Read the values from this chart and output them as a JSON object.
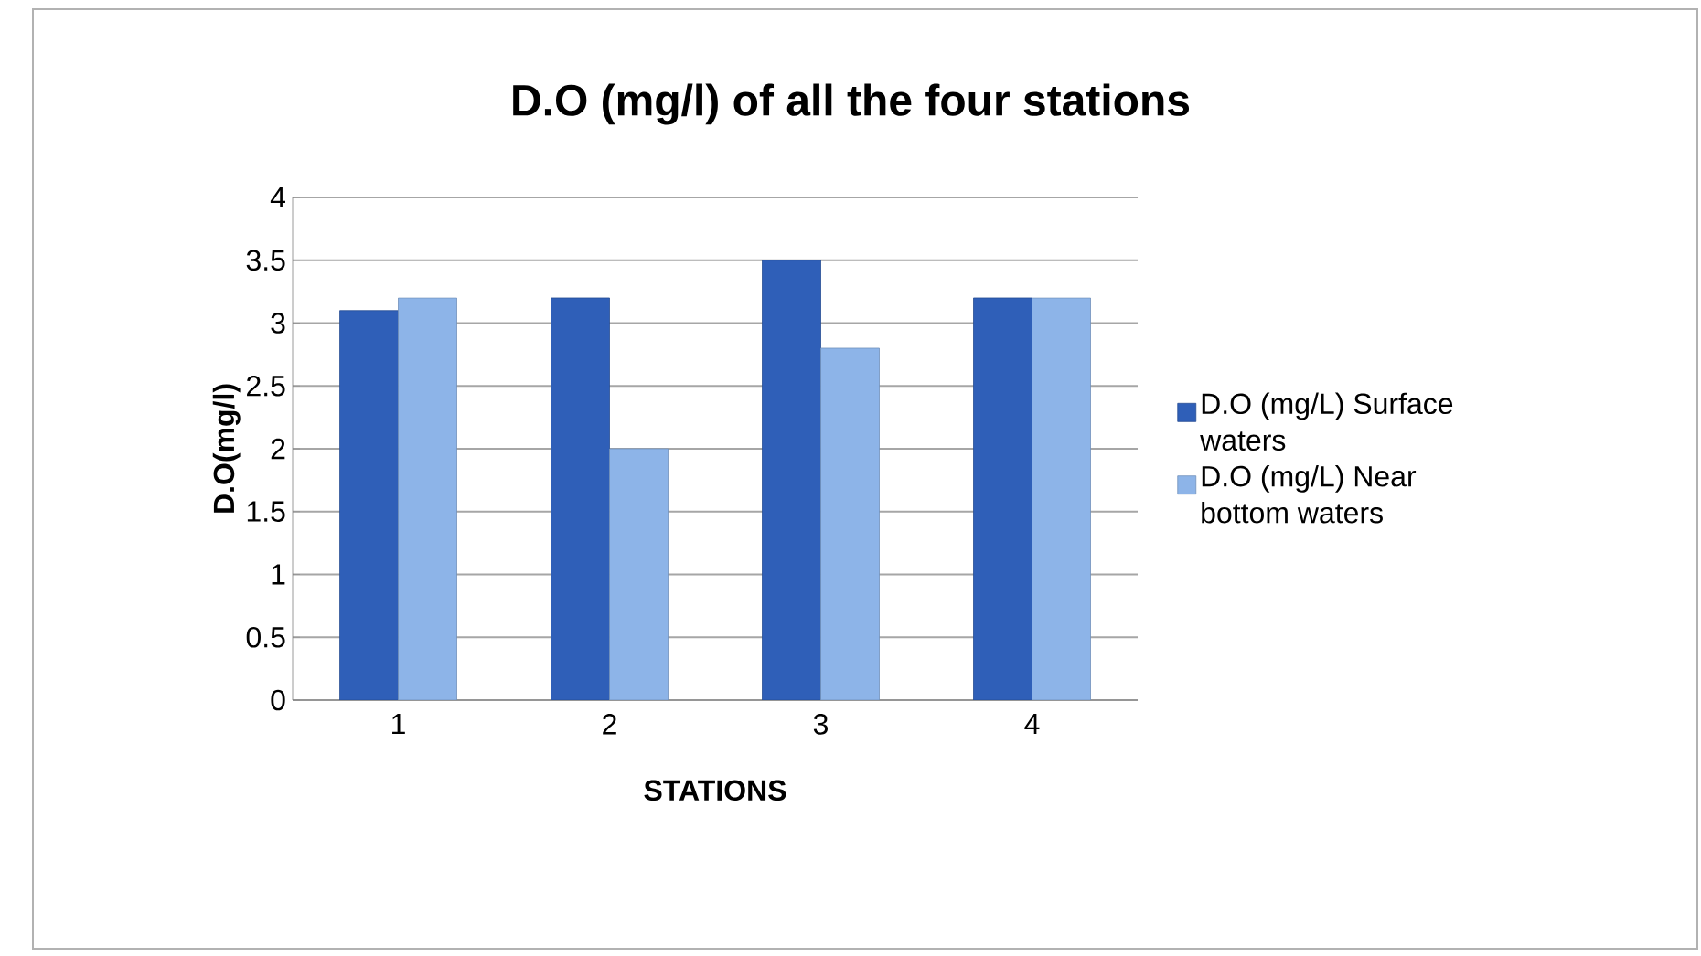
{
  "chart_data": {
    "type": "bar",
    "title": "D.O (mg/l) of all the four stations",
    "xlabel": "STATIONS",
    "ylabel": "D.O(mg/l)",
    "categories": [
      "1",
      "2",
      "3",
      "4"
    ],
    "series": [
      {
        "name": "D.O (mg/L) Surface waters",
        "color": "#2f5fb8",
        "values": [
          3.1,
          3.2,
          3.5,
          3.2
        ]
      },
      {
        "name": "D.O (mg/L) Near bottom waters",
        "color": "#8db4e8",
        "values": [
          3.2,
          2.0,
          2.8,
          3.2
        ]
      }
    ],
    "ylim": [
      0,
      4
    ],
    "yticks": [
      0,
      0.5,
      1,
      1.5,
      2,
      2.5,
      3,
      3.5,
      4
    ],
    "grid": "y",
    "legend": "right"
  }
}
